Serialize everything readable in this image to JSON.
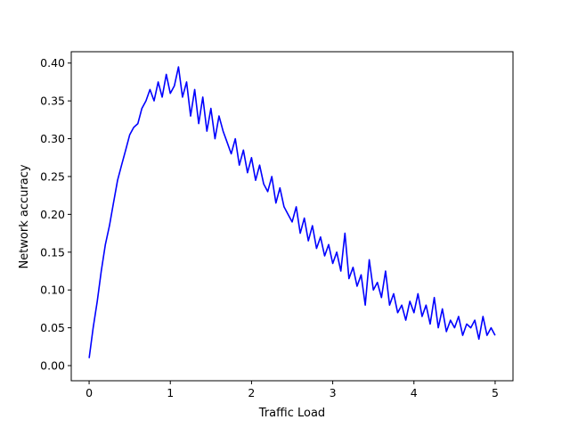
{
  "chart_data": {
    "type": "line",
    "title": "",
    "xlabel": "Traffic Load",
    "ylabel": "Network accuracy",
    "xlim": [
      -0.22,
      5.22
    ],
    "ylim": [
      -0.02,
      0.415
    ],
    "xticks": [
      0,
      1,
      2,
      3,
      4,
      5
    ],
    "xtick_labels": [
      "0",
      "1",
      "2",
      "3",
      "4",
      "5"
    ],
    "yticks": [
      0.0,
      0.05,
      0.1,
      0.15,
      0.2,
      0.25,
      0.3,
      0.35,
      0.4
    ],
    "ytick_labels": [
      "0.00",
      "0.05",
      "0.10",
      "0.15",
      "0.20",
      "0.25",
      "0.30",
      "0.35",
      "0.40"
    ],
    "grid": false,
    "legend": null,
    "series": [
      {
        "color": "#0000ff",
        "x": [
          0.0,
          0.05,
          0.1,
          0.15,
          0.2,
          0.25,
          0.3,
          0.35,
          0.4,
          0.45,
          0.5,
          0.55,
          0.6,
          0.65,
          0.7,
          0.75,
          0.8,
          0.85,
          0.9,
          0.95,
          1.0,
          1.05,
          1.1,
          1.15,
          1.2,
          1.25,
          1.3,
          1.35,
          1.4,
          1.45,
          1.5,
          1.55,
          1.6,
          1.65,
          1.7,
          1.75,
          1.8,
          1.85,
          1.9,
          1.95,
          2.0,
          2.05,
          2.1,
          2.15,
          2.2,
          2.25,
          2.3,
          2.35,
          2.4,
          2.45,
          2.5,
          2.55,
          2.6,
          2.65,
          2.7,
          2.75,
          2.8,
          2.85,
          2.9,
          2.95,
          3.0,
          3.05,
          3.1,
          3.15,
          3.2,
          3.25,
          3.3,
          3.35,
          3.4,
          3.45,
          3.5,
          3.55,
          3.6,
          3.65,
          3.7,
          3.75,
          3.8,
          3.85,
          3.9,
          3.95,
          4.0,
          4.05,
          4.1,
          4.15,
          4.2,
          4.25,
          4.3,
          4.35,
          4.4,
          4.45,
          4.5,
          4.55,
          4.6,
          4.65,
          4.7,
          4.75,
          4.8,
          4.85,
          4.9,
          4.95,
          5.0
        ],
        "y": [
          0.01,
          0.05,
          0.085,
          0.125,
          0.16,
          0.185,
          0.215,
          0.245,
          0.265,
          0.285,
          0.305,
          0.315,
          0.32,
          0.34,
          0.35,
          0.365,
          0.35,
          0.375,
          0.355,
          0.385,
          0.36,
          0.37,
          0.395,
          0.355,
          0.375,
          0.33,
          0.365,
          0.32,
          0.355,
          0.31,
          0.34,
          0.3,
          0.33,
          0.31,
          0.295,
          0.28,
          0.3,
          0.265,
          0.285,
          0.255,
          0.275,
          0.245,
          0.265,
          0.24,
          0.23,
          0.25,
          0.215,
          0.235,
          0.21,
          0.2,
          0.19,
          0.21,
          0.175,
          0.195,
          0.165,
          0.185,
          0.155,
          0.17,
          0.145,
          0.16,
          0.135,
          0.15,
          0.125,
          0.175,
          0.115,
          0.13,
          0.105,
          0.12,
          0.08,
          0.14,
          0.1,
          0.11,
          0.09,
          0.125,
          0.08,
          0.095,
          0.07,
          0.08,
          0.06,
          0.085,
          0.07,
          0.095,
          0.065,
          0.08,
          0.055,
          0.09,
          0.05,
          0.075,
          0.045,
          0.06,
          0.05,
          0.065,
          0.04,
          0.055,
          0.05,
          0.06,
          0.035,
          0.065,
          0.04,
          0.05,
          0.04
        ]
      }
    ]
  }
}
